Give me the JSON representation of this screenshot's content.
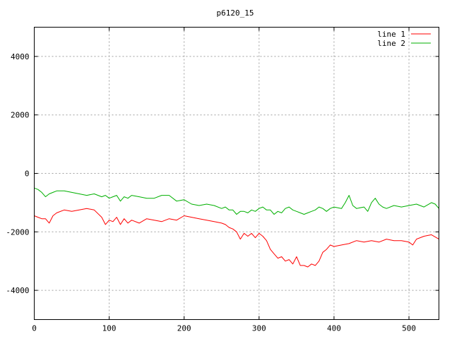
{
  "chart_data": {
    "type": "line",
    "title": "p6120_15",
    "xlabel": "",
    "ylabel": "",
    "xlim": [
      0,
      540
    ],
    "ylim": [
      -5000,
      5000
    ],
    "x_ticks": [
      0,
      100,
      200,
      300,
      400,
      500
    ],
    "y_ticks": [
      -4000,
      -2000,
      0,
      2000,
      4000
    ],
    "grid": true,
    "legend_position": "top-right",
    "series": [
      {
        "name": "line 1",
        "color": "#ff0000",
        "x": [
          0,
          5,
          10,
          15,
          20,
          25,
          30,
          40,
          50,
          60,
          70,
          80,
          90,
          95,
          100,
          105,
          110,
          115,
          120,
          125,
          130,
          140,
          150,
          160,
          170,
          180,
          190,
          200,
          210,
          220,
          230,
          240,
          250,
          255,
          260,
          265,
          270,
          275,
          280,
          285,
          290,
          295,
          300,
          305,
          310,
          315,
          320,
          325,
          330,
          335,
          340,
          345,
          350,
          355,
          360,
          365,
          370,
          375,
          380,
          385,
          390,
          395,
          400,
          410,
          420,
          430,
          440,
          450,
          460,
          470,
          480,
          490,
          500,
          505,
          510,
          520,
          530,
          540
        ],
        "y": [
          -1450,
          -1500,
          -1550,
          -1550,
          -1700,
          -1450,
          -1350,
          -1250,
          -1300,
          -1250,
          -1200,
          -1250,
          -1500,
          -1750,
          -1600,
          -1650,
          -1500,
          -1750,
          -1550,
          -1700,
          -1600,
          -1700,
          -1550,
          -1600,
          -1650,
          -1550,
          -1600,
          -1450,
          -1500,
          -1550,
          -1600,
          -1650,
          -1700,
          -1750,
          -1850,
          -1900,
          -2000,
          -2250,
          -2050,
          -2150,
          -2050,
          -2200,
          -2050,
          -2150,
          -2300,
          -2600,
          -2750,
          -2900,
          -2850,
          -3000,
          -2950,
          -3100,
          -2850,
          -3150,
          -3150,
          -3200,
          -3100,
          -3150,
          -3000,
          -2700,
          -2600,
          -2450,
          -2500,
          -2450,
          -2400,
          -2300,
          -2350,
          -2300,
          -2350,
          -2250,
          -2300,
          -2300,
          -2350,
          -2450,
          -2250,
          -2150,
          -2100,
          -2250
        ]
      },
      {
        "name": "line 2",
        "color": "#00b000",
        "x": [
          0,
          5,
          10,
          15,
          20,
          25,
          30,
          40,
          50,
          60,
          70,
          80,
          90,
          95,
          100,
          105,
          110,
          115,
          120,
          125,
          130,
          140,
          150,
          160,
          170,
          180,
          190,
          200,
          210,
          220,
          230,
          240,
          250,
          255,
          260,
          265,
          270,
          275,
          280,
          285,
          290,
          295,
          300,
          305,
          310,
          315,
          320,
          325,
          330,
          335,
          340,
          345,
          350,
          355,
          360,
          365,
          370,
          375,
          380,
          385,
          390,
          395,
          400,
          410,
          415,
          420,
          425,
          430,
          440,
          445,
          450,
          455,
          460,
          465,
          470,
          480,
          490,
          500,
          510,
          520,
          530,
          535,
          540
        ],
        "y": [
          -500,
          -550,
          -650,
          -800,
          -700,
          -650,
          -600,
          -600,
          -650,
          -700,
          -750,
          -700,
          -800,
          -750,
          -850,
          -800,
          -750,
          -950,
          -800,
          -850,
          -750,
          -800,
          -850,
          -850,
          -750,
          -750,
          -950,
          -900,
          -1050,
          -1100,
          -1050,
          -1100,
          -1200,
          -1150,
          -1250,
          -1250,
          -1400,
          -1300,
          -1300,
          -1350,
          -1250,
          -1300,
          -1200,
          -1150,
          -1250,
          -1250,
          -1400,
          -1300,
          -1350,
          -1200,
          -1150,
          -1250,
          -1300,
          -1350,
          -1400,
          -1350,
          -1300,
          -1250,
          -1150,
          -1200,
          -1300,
          -1200,
          -1150,
          -1200,
          -1000,
          -750,
          -1100,
          -1200,
          -1150,
          -1300,
          -1000,
          -850,
          -1050,
          -1150,
          -1200,
          -1100,
          -1150,
          -1100,
          -1050,
          -1150,
          -1000,
          -1050,
          -1200
        ]
      }
    ]
  }
}
